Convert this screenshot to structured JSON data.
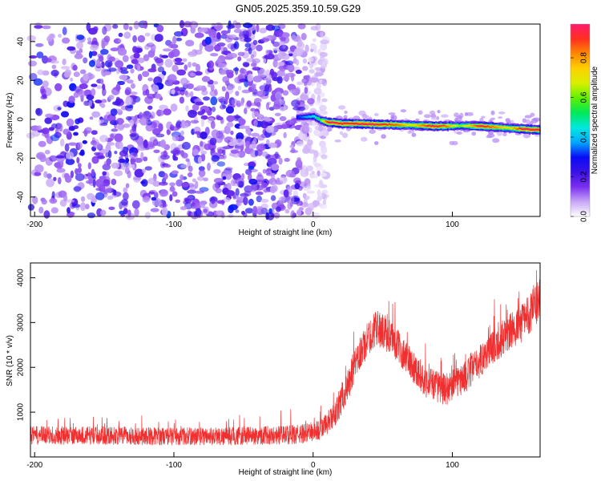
{
  "title": "GN05.2025.359.10.59.G29",
  "chart_data": [
    {
      "type": "heatmap",
      "xlabel": "Height of straight line (km)",
      "ylabel": "Frequency (Hz)",
      "xlim": [
        -203,
        163
      ],
      "ylim": [
        -50,
        49
      ],
      "xticks": [
        -200,
        -100,
        0,
        100
      ],
      "yticks": [
        40,
        20,
        0,
        -20,
        -40
      ],
      "colorbar": {
        "label": "Normalized spectral amplitude",
        "range": [
          0,
          0.97
        ],
        "ticks": [
          0.0,
          0.2,
          0.4,
          0.6,
          0.8
        ],
        "colors": [
          "#ffffff",
          "#c7a6f5",
          "#7a2ff0",
          "#3a12e6",
          "#0a0cf5",
          "#00a8ff",
          "#00e8e0",
          "#00e85a",
          "#60f000",
          "#d8f000",
          "#ffd000",
          "#ff8800",
          "#ff3020",
          "#ff1a6e"
        ]
      },
      "noise": {
        "x_range": [
          -203,
          5
        ],
        "freq_range": [
          -50,
          49
        ],
        "dominant_amplitude": 0.25
      },
      "signal_track": [
        {
          "x": -12,
          "f": 1.0,
          "amp": 0.3
        },
        {
          "x": 0,
          "f": 1.5,
          "amp": 0.45
        },
        {
          "x": 5,
          "f": -0.5,
          "amp": 0.6
        },
        {
          "x": 10,
          "f": -1.5,
          "amp": 0.95
        },
        {
          "x": 20,
          "f": -2.2,
          "amp": 0.93
        },
        {
          "x": 40,
          "f": -2.5,
          "amp": 0.95
        },
        {
          "x": 60,
          "f": -2.8,
          "amp": 0.85
        },
        {
          "x": 70,
          "f": -3.0,
          "amp": 0.7
        },
        {
          "x": 85,
          "f": -3.5,
          "amp": 0.95
        },
        {
          "x": 95,
          "f": -3.5,
          "amp": 0.85
        },
        {
          "x": 105,
          "f": -3.3,
          "amp": 0.6
        },
        {
          "x": 120,
          "f": -3.5,
          "amp": 0.95
        },
        {
          "x": 140,
          "f": -4.5,
          "amp": 0.7
        },
        {
          "x": 150,
          "f": -5.0,
          "amp": 0.95
        },
        {
          "x": 163,
          "f": -5.5,
          "amp": 0.95
        }
      ]
    },
    {
      "type": "line",
      "xlabel": "Height of straight line (km)",
      "ylabel": "SNR (10 * v/v)",
      "xlim": [
        -203,
        163
      ],
      "ylim": [
        0,
        4330
      ],
      "xticks": [
        -200,
        -100,
        0,
        100
      ],
      "yticks": [
        1000,
        2000,
        3000,
        4000
      ],
      "color": "#f03030",
      "envelope": [
        {
          "x": -203,
          "mean": 480,
          "spread": 260
        },
        {
          "x": -150,
          "mean": 480,
          "spread": 260
        },
        {
          "x": -100,
          "mean": 460,
          "spread": 250
        },
        {
          "x": -50,
          "mean": 470,
          "spread": 260
        },
        {
          "x": -10,
          "mean": 500,
          "spread": 270
        },
        {
          "x": 5,
          "mean": 600,
          "spread": 300
        },
        {
          "x": 15,
          "mean": 900,
          "spread": 350
        },
        {
          "x": 25,
          "mean": 1600,
          "spread": 450
        },
        {
          "x": 35,
          "mean": 2400,
          "spread": 500
        },
        {
          "x": 45,
          "mean": 2900,
          "spread": 500
        },
        {
          "x": 55,
          "mean": 2700,
          "spread": 500
        },
        {
          "x": 65,
          "mean": 2300,
          "spread": 450
        },
        {
          "x": 80,
          "mean": 1700,
          "spread": 450
        },
        {
          "x": 95,
          "mean": 1500,
          "spread": 450
        },
        {
          "x": 110,
          "mean": 1800,
          "spread": 450
        },
        {
          "x": 130,
          "mean": 2500,
          "spread": 500
        },
        {
          "x": 150,
          "mean": 3000,
          "spread": 550
        },
        {
          "x": 163,
          "mean": 3500,
          "spread": 600
        }
      ]
    }
  ]
}
